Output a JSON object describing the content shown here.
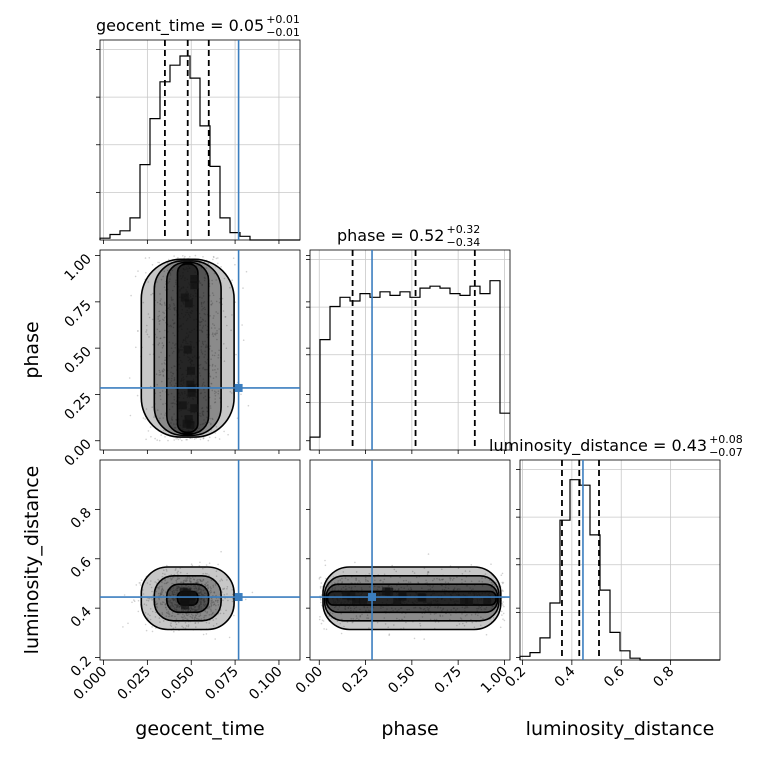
{
  "chart_data": {
    "type": "corner",
    "parameters": [
      "geocent_time",
      "phase",
      "luminosity_distance"
    ],
    "colors": {
      "truth": "#3b7ebf",
      "hist": "#000000",
      "grid": "#c8c8c8",
      "points": "#9a9a9a"
    },
    "truths": {
      "geocent_time": 0.077,
      "phase": 0.285,
      "luminosity_distance": 0.445
    },
    "axes": {
      "geocent_time": {
        "range": [
          -0.002,
          0.112
        ],
        "ticks": [
          0.0,
          0.025,
          0.05,
          0.075,
          0.1
        ],
        "tick_labels": [
          "0.000",
          "0.025",
          "0.050",
          "0.075",
          "0.100"
        ],
        "label": "geocent_time"
      },
      "phase": {
        "range": [
          -0.05,
          1.03
        ],
        "ticks": [
          0.0,
          0.25,
          0.5,
          0.75,
          1.0
        ],
        "tick_labels": [
          "0.00",
          "0.25",
          "0.50",
          "0.75",
          "1.00"
        ],
        "label": "phase"
      },
      "luminosity_distance": {
        "range": [
          0.19,
          1.0
        ],
        "ticks": [
          0.2,
          0.4,
          0.6,
          0.8
        ],
        "tick_labels": [
          "0.2",
          "0.4",
          "0.6",
          "0.8"
        ],
        "label": "luminosity_distance"
      }
    },
    "titles": [
      {
        "param": "geocent_time",
        "text": "geocent_time = 0.05",
        "plus": "+0.01",
        "minus": "−0.01"
      },
      {
        "param": "phase",
        "text": "phase = 0.52",
        "plus": "+0.32",
        "minus": "−0.34"
      },
      {
        "param": "luminosity_distance",
        "text": "luminosity_distance = 0.43",
        "plus": "+0.08",
        "minus": "−0.07"
      }
    ],
    "quantiles": {
      "geocent_time": [
        0.035,
        0.048,
        0.06
      ],
      "phase": [
        0.18,
        0.52,
        0.84
      ],
      "luminosity_distance": [
        0.36,
        0.43,
        0.51
      ]
    },
    "histograms": {
      "geocent_time": {
        "bin_edges": [
          -0.002,
          0.0037,
          0.0094,
          0.0151,
          0.0208,
          0.0265,
          0.0322,
          0.0379,
          0.0436,
          0.0493,
          0.055,
          0.0607,
          0.0664,
          0.0721,
          0.0778,
          0.0835,
          0.0892,
          0.0949,
          0.1006,
          0.1063,
          0.112
        ],
        "counts": [
          0.01,
          0.03,
          0.05,
          0.12,
          0.41,
          0.66,
          0.86,
          0.95,
          1.0,
          0.88,
          0.62,
          0.4,
          0.12,
          0.04,
          0.02,
          0.0,
          0.0,
          0.0,
          0.0,
          0.0
        ]
      },
      "phase": {
        "bin_edges": [
          -0.05,
          0.004,
          0.058,
          0.112,
          0.166,
          0.22,
          0.274,
          0.328,
          0.382,
          0.436,
          0.49,
          0.544,
          0.598,
          0.652,
          0.706,
          0.76,
          0.814,
          0.868,
          0.922,
          0.976,
          1.03
        ],
        "counts": [
          0.07,
          0.6,
          0.78,
          0.83,
          0.81,
          0.85,
          0.83,
          0.86,
          0.84,
          0.86,
          0.83,
          0.88,
          0.89,
          0.88,
          0.85,
          0.84,
          0.89,
          0.85,
          0.92,
          0.2
        ]
      },
      "luminosity_distance": {
        "bin_edges": [
          0.19,
          0.2305,
          0.271,
          0.3115,
          0.352,
          0.3925,
          0.433,
          0.4735,
          0.514,
          0.5545,
          0.595,
          0.6355,
          0.676,
          0.7165,
          0.757,
          0.7975,
          0.838,
          0.8785,
          0.919,
          0.9595,
          1.0
        ],
        "counts": [
          0.02,
          0.04,
          0.12,
          0.31,
          0.76,
          0.98,
          0.95,
          0.68,
          0.38,
          0.15,
          0.05,
          0.01,
          0.0,
          0.0,
          0.0,
          0.0,
          0.0,
          0.0,
          0.0,
          0.0
        ]
      }
    },
    "grid": true
  }
}
